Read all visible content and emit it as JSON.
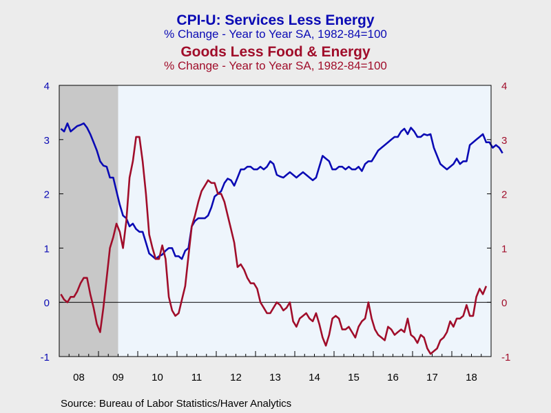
{
  "source": "Source:  Bureau of Labor Statistics/Haver Analytics",
  "chart_data": {
    "type": "line",
    "title": "CPI-U: Services Less Energy",
    "subtitle": "% Change - Year to Year    SA, 1982-84=100",
    "title2": "Goods Less Food & Energy",
    "subtitle2": "% Change - Year to Year    SA, 1982-84=100",
    "xlabel": "",
    "ylabel": "",
    "x_ticks": [
      "08",
      "09",
      "10",
      "11",
      "12",
      "13",
      "14",
      "15",
      "16",
      "17",
      "18"
    ],
    "xlim": [
      "2008-01",
      "2018-12"
    ],
    "y_ticks_left": [
      "4",
      "3",
      "2",
      "1",
      "0",
      "-1"
    ],
    "y_ticks_right": [
      "4",
      "3",
      "2",
      "1",
      "0",
      "-1"
    ],
    "ylim": [
      -1,
      4
    ],
    "zero_line": true,
    "grid": false,
    "recession_shading": {
      "start": "2008-01",
      "end": "2009-06",
      "color": "#c8c8c8"
    },
    "plot_background": "#eef5fc",
    "series": [
      {
        "color": "#0a0ab4",
        "axis": "left",
        "start": "2008-01",
        "values": [
          3.2,
          3.15,
          3.3,
          3.15,
          3.2,
          3.25,
          3.27,
          3.3,
          3.22,
          3.1,
          2.95,
          2.8,
          2.6,
          2.52,
          2.5,
          2.3,
          2.3,
          2.05,
          1.8,
          1.6,
          1.55,
          1.4,
          1.45,
          1.35,
          1.3,
          1.3,
          1.1,
          0.9,
          0.85,
          0.8,
          0.85,
          0.88,
          0.95,
          1.0,
          1.0,
          0.85,
          0.85,
          0.8,
          0.95,
          1.0,
          1.4,
          1.5,
          1.55,
          1.55,
          1.55,
          1.6,
          1.75,
          1.95,
          2.0,
          2.05,
          2.2,
          2.28,
          2.25,
          2.15,
          2.3,
          2.45,
          2.45,
          2.5,
          2.5,
          2.45,
          2.45,
          2.5,
          2.45,
          2.5,
          2.6,
          2.55,
          2.35,
          2.32,
          2.3,
          2.35,
          2.4,
          2.35,
          2.3,
          2.35,
          2.4,
          2.35,
          2.3,
          2.25,
          2.3,
          2.5,
          2.7,
          2.65,
          2.6,
          2.45,
          2.45,
          2.5,
          2.5,
          2.45,
          2.5,
          2.45,
          2.45,
          2.5,
          2.42,
          2.55,
          2.6,
          2.6,
          2.7,
          2.8,
          2.85,
          2.9,
          2.95,
          3.0,
          3.05,
          3.05,
          3.15,
          3.2,
          3.1,
          3.22,
          3.15,
          3.05,
          3.05,
          3.1,
          3.08,
          3.1,
          2.85,
          2.7,
          2.55,
          2.5,
          2.45,
          2.5,
          2.55,
          2.65,
          2.55,
          2.6,
          2.6,
          2.9,
          2.95,
          3.0,
          3.05,
          3.1,
          2.95,
          2.95,
          2.85,
          2.9,
          2.85,
          2.75
        ]
      },
      {
        "color": "#a00d2a",
        "axis": "right",
        "start": "2008-01",
        "values": [
          0.15,
          0.05,
          0.0,
          0.1,
          0.1,
          0.2,
          0.35,
          0.45,
          0.45,
          0.15,
          -0.1,
          -0.4,
          -0.55,
          -0.1,
          0.45,
          1.0,
          1.2,
          1.45,
          1.3,
          1.0,
          1.5,
          2.3,
          2.6,
          3.05,
          3.05,
          2.6,
          2.0,
          1.25,
          1.0,
          0.8,
          0.8,
          1.05,
          0.8,
          0.1,
          -0.15,
          -0.25,
          -0.2,
          0.05,
          0.3,
          0.85,
          1.4,
          1.6,
          1.85,
          2.05,
          2.15,
          2.25,
          2.2,
          2.2,
          2.0,
          2.0,
          1.85,
          1.6,
          1.35,
          1.1,
          0.65,
          0.7,
          0.6,
          0.45,
          0.35,
          0.35,
          0.25,
          0.0,
          -0.1,
          -0.2,
          -0.2,
          -0.1,
          0.0,
          -0.05,
          -0.15,
          -0.1,
          0.0,
          -0.35,
          -0.45,
          -0.3,
          -0.25,
          -0.2,
          -0.3,
          -0.35,
          -0.2,
          -0.4,
          -0.65,
          -0.8,
          -0.6,
          -0.3,
          -0.25,
          -0.3,
          -0.5,
          -0.5,
          -0.45,
          -0.55,
          -0.65,
          -0.45,
          -0.35,
          -0.3,
          0.0,
          -0.3,
          -0.5,
          -0.6,
          -0.65,
          -0.7,
          -0.45,
          -0.5,
          -0.6,
          -0.55,
          -0.5,
          -0.55,
          -0.3,
          -0.6,
          -0.65,
          -0.75,
          -0.6,
          -0.65,
          -0.85,
          -0.95,
          -0.9,
          -0.85,
          -0.7,
          -0.65,
          -0.55,
          -0.35,
          -0.45,
          -0.3,
          -0.3,
          -0.25,
          -0.05,
          -0.25,
          -0.25,
          0.1,
          0.25,
          0.15,
          0.3
        ]
      }
    ]
  }
}
